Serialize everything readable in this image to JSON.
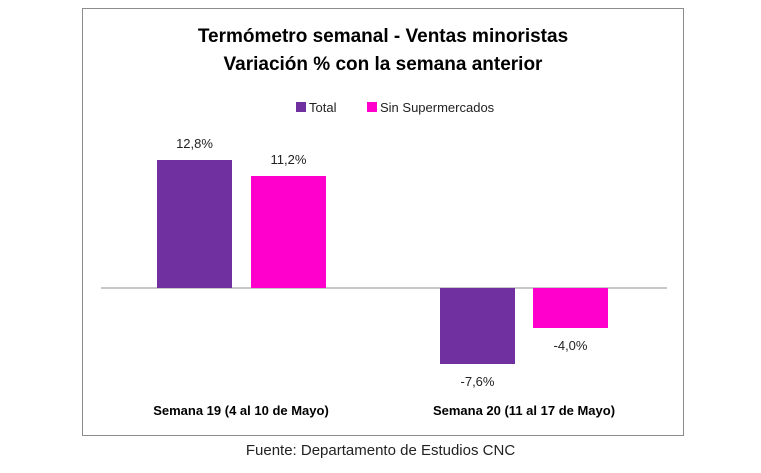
{
  "chart_data": {
    "type": "bar",
    "title": "Termómetro semanal - Ventas minoristas",
    "subtitle": "Variación % con la semana anterior",
    "categories": [
      "Semana 19 (4 al 10 de  Mayo)",
      "Semana 20 (11 al 17 de Mayo)"
    ],
    "series": [
      {
        "name": "Total",
        "color": "#7030a0",
        "values": [
          12.8,
          -7.6
        ],
        "labels": [
          "12,8%",
          "-7,6%"
        ]
      },
      {
        "name": "Sin Supermercados",
        "color": "#ff00cc",
        "values": [
          11.2,
          -4.0
        ],
        "labels": [
          "11,2%",
          "-4,0%"
        ]
      }
    ],
    "legend": "top-center",
    "grid": false,
    "xlabel": "",
    "ylabel": ""
  },
  "footer": "Fuente: Departamento de Estudios CNC"
}
